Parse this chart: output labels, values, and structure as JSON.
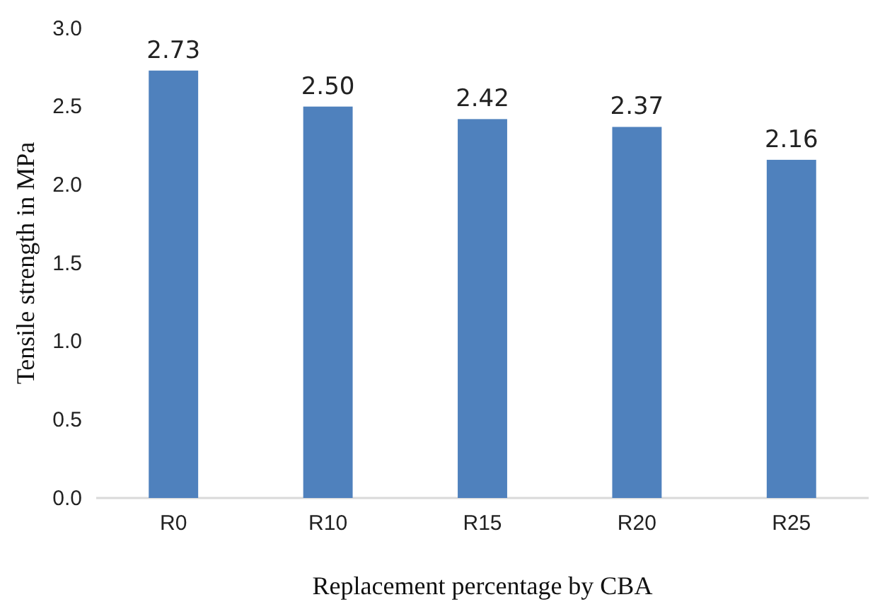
{
  "chart_data": {
    "type": "bar",
    "xlabel": "Replacement percentage by CBA",
    "ylabel": "Tensile strength in MPa",
    "categories": [
      "R0",
      "R10",
      "R15",
      "R20",
      "R25"
    ],
    "values": [
      2.73,
      2.5,
      2.42,
      2.37,
      2.16
    ],
    "color": "#4f81bd",
    "ylim": [
      0,
      3
    ],
    "yticks": [
      {
        "value": 0,
        "label": "0.0"
      },
      {
        "value": 0.5,
        "label": "0.5"
      },
      {
        "value": 1,
        "label": "1.0"
      },
      {
        "value": 1.5,
        "label": "1.5"
      },
      {
        "value": 2,
        "label": "2.0"
      },
      {
        "value": 2.5,
        "label": "2.5"
      },
      {
        "value": 3,
        "label": "3.0"
      }
    ],
    "data_labels": true,
    "value_labels": [
      "2.73",
      "2.50",
      "2.42",
      "2.37",
      "2.16"
    ]
  }
}
